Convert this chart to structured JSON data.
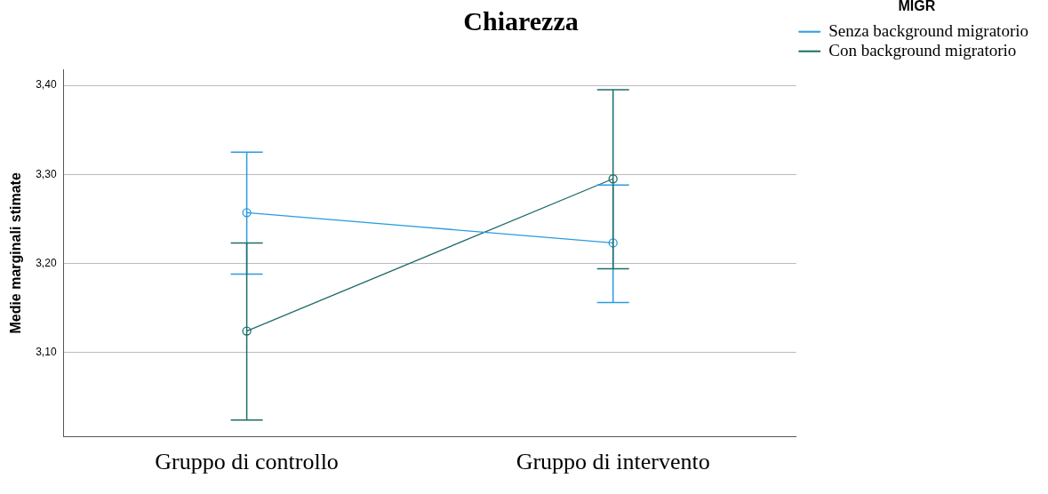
{
  "chart_data": {
    "type": "line",
    "title": "Chiarezza",
    "ylabel": "Medie marginali stimate",
    "legend_title": "MIGR",
    "categories": [
      "Gruppo di controllo",
      "Gruppo di intervento"
    ],
    "series": [
      {
        "name": "Senza background migratorio",
        "color": "#2a9be0",
        "values": [
          3.257,
          3.223
        ],
        "errors": [
          [
            3.188,
            3.325
          ],
          [
            3.156,
            3.288
          ]
        ]
      },
      {
        "name": "Con background migratorio",
        "color": "#1c6e6a",
        "values": [
          3.124,
          3.295
        ],
        "errors": [
          [
            3.024,
            3.223
          ],
          [
            3.194,
            3.395
          ]
        ]
      }
    ],
    "ylim": [
      3.005,
      3.418
    ],
    "yticks": [
      {
        "value": 3.1,
        "label": "3,10"
      },
      {
        "value": 3.2,
        "label": "3,20"
      },
      {
        "value": 3.3,
        "label": "3,30"
      },
      {
        "value": 3.4,
        "label": "3,40"
      }
    ],
    "grid": "y",
    "legend": "top right",
    "marker": "circle",
    "line_style": "solid"
  }
}
